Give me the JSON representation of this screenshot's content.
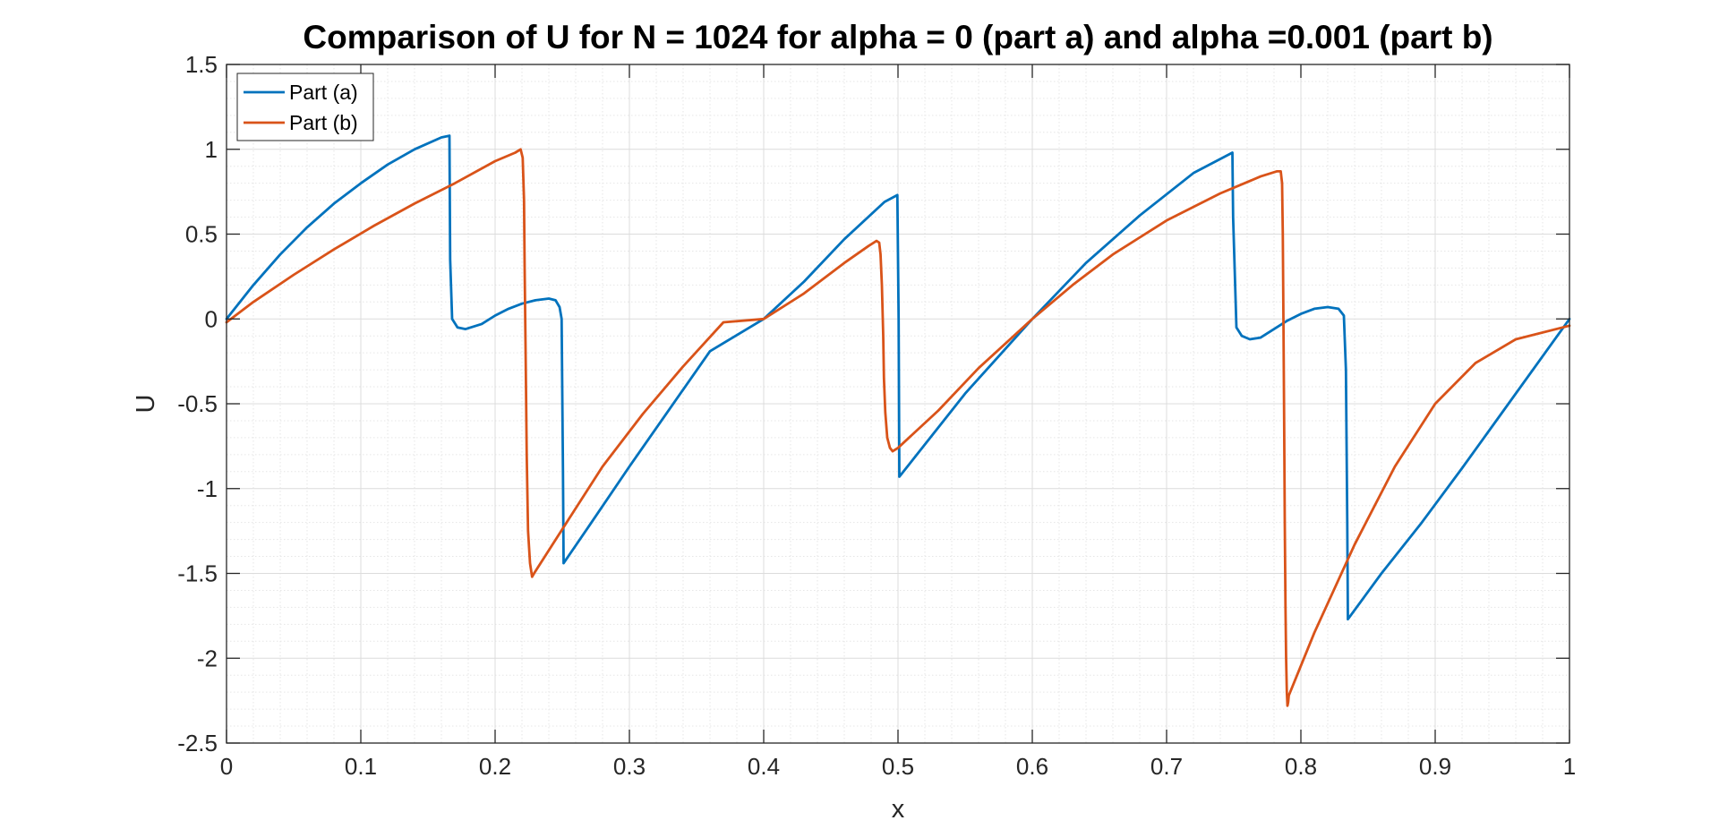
{
  "chart_data": {
    "type": "line",
    "title": "Comparison of U for N = 1024 for alpha = 0 (part a) and alpha =0.001 (part b)",
    "xlabel": "x",
    "ylabel": "U",
    "xlim": [
      0,
      1
    ],
    "ylim": [
      -2.5,
      1.5
    ],
    "xticks": [
      "0",
      "0.1",
      "0.2",
      "0.3",
      "0.4",
      "0.5",
      "0.6",
      "0.7",
      "0.8",
      "0.9",
      "1"
    ],
    "yticks": [
      "1.5",
      "1",
      "0.5",
      "0",
      "-0.5",
      "-1",
      "-1.5",
      "-2",
      "-2.5"
    ],
    "grid": true,
    "minor_grid": true,
    "legend_position": "top-left",
    "series": [
      {
        "name": "Part (a)",
        "color": "#0072BD",
        "x": [
          0,
          0.02,
          0.04,
          0.06,
          0.08,
          0.1,
          0.12,
          0.14,
          0.16,
          0.166,
          0.1665,
          0.168,
          0.172,
          0.178,
          0.19,
          0.2,
          0.21,
          0.22,
          0.23,
          0.24,
          0.245,
          0.248,
          0.2495,
          0.2505,
          0.251,
          0.27,
          0.3,
          0.33,
          0.36,
          0.4,
          0.43,
          0.46,
          0.49,
          0.4995,
          0.5005,
          0.501,
          0.52,
          0.55,
          0.6,
          0.64,
          0.68,
          0.72,
          0.749,
          0.7495,
          0.752,
          0.756,
          0.762,
          0.77,
          0.78,
          0.79,
          0.8,
          0.81,
          0.82,
          0.828,
          0.832,
          0.8335,
          0.8345,
          0.835,
          0.86,
          0.89,
          0.92,
          0.95,
          0.98,
          1.0
        ],
        "y": [
          0.0,
          0.2,
          0.38,
          0.54,
          0.68,
          0.8,
          0.91,
          1.0,
          1.07,
          1.08,
          0.35,
          0.0,
          -0.05,
          -0.06,
          -0.03,
          0.02,
          0.06,
          0.09,
          0.11,
          0.12,
          0.11,
          0.07,
          0.0,
          -0.9,
          -1.44,
          -1.22,
          -0.87,
          -0.53,
          -0.19,
          0.0,
          0.22,
          0.47,
          0.69,
          0.73,
          0.0,
          -0.93,
          -0.74,
          -0.44,
          0.0,
          0.33,
          0.61,
          0.86,
          0.98,
          0.6,
          -0.05,
          -0.1,
          -0.12,
          -0.11,
          -0.06,
          -0.01,
          0.03,
          0.06,
          0.07,
          0.06,
          0.02,
          -0.3,
          -1.2,
          -1.77,
          -1.5,
          -1.2,
          -0.88,
          -0.55,
          -0.22,
          0.0
        ]
      },
      {
        "name": "Part (b)",
        "color": "#D95319",
        "x": [
          0,
          0.02,
          0.05,
          0.08,
          0.11,
          0.14,
          0.17,
          0.2,
          0.215,
          0.219,
          0.2205,
          0.2215,
          0.222,
          0.223,
          0.2235,
          0.2245,
          0.226,
          0.2275,
          0.229,
          0.25,
          0.28,
          0.31,
          0.34,
          0.37,
          0.4,
          0.43,
          0.46,
          0.478,
          0.484,
          0.486,
          0.487,
          0.488,
          0.489,
          0.4895,
          0.4905,
          0.492,
          0.494,
          0.496,
          0.5,
          0.53,
          0.56,
          0.6,
          0.63,
          0.66,
          0.7,
          0.74,
          0.77,
          0.782,
          0.785,
          0.786,
          0.7865,
          0.787,
          0.7875,
          0.788,
          0.7885,
          0.789,
          0.7895,
          0.79,
          0.7905,
          0.791,
          0.81,
          0.84,
          0.87,
          0.9,
          0.93,
          0.96,
          1.0
        ],
        "y": [
          -0.02,
          0.1,
          0.26,
          0.41,
          0.55,
          0.68,
          0.8,
          0.93,
          0.98,
          1.0,
          0.95,
          0.7,
          0.3,
          -0.4,
          -0.8,
          -1.25,
          -1.44,
          -1.52,
          -1.5,
          -1.24,
          -0.87,
          -0.56,
          -0.28,
          -0.02,
          0.0,
          0.15,
          0.33,
          0.43,
          0.46,
          0.45,
          0.38,
          0.2,
          -0.1,
          -0.35,
          -0.55,
          -0.7,
          -0.76,
          -0.78,
          -0.76,
          -0.54,
          -0.29,
          0.0,
          0.2,
          0.38,
          0.58,
          0.74,
          0.84,
          0.87,
          0.87,
          0.8,
          0.5,
          0.0,
          -0.6,
          -1.2,
          -1.7,
          -2.0,
          -2.2,
          -2.28,
          -2.26,
          -2.22,
          -1.85,
          -1.33,
          -0.87,
          -0.5,
          -0.26,
          -0.12,
          -0.04
        ]
      }
    ]
  }
}
